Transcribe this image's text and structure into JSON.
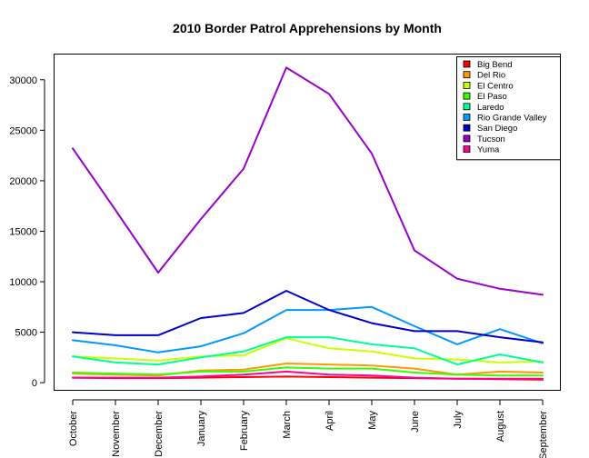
{
  "chart_data": {
    "type": "line",
    "title": "2010 Border Patrol Apprehensions by Month",
    "xlabel": "",
    "ylabel": "",
    "categories": [
      "October",
      "November",
      "December",
      "January",
      "February",
      "March",
      "April",
      "May",
      "June",
      "July",
      "August",
      "September"
    ],
    "y_ticks": [
      0,
      5000,
      10000,
      15000,
      20000,
      25000,
      30000
    ],
    "ylim": [
      -800,
      32500
    ],
    "grid": false,
    "legend_position": "top-right",
    "series": [
      {
        "name": "Big Bend",
        "color": "#ff0000",
        "values": [
          500,
          450,
          450,
          500,
          550,
          600,
          550,
          500,
          450,
          400,
          350,
          300
        ]
      },
      {
        "name": "Del Rio",
        "color": "#ff9900",
        "values": [
          900,
          800,
          700,
          1200,
          1300,
          1900,
          1800,
          1700,
          1400,
          800,
          1100,
          1000
        ]
      },
      {
        "name": "El Centro",
        "color": "#ccff00",
        "values": [
          2600,
          2400,
          2200,
          2600,
          2700,
          4400,
          3400,
          3100,
          2400,
          2300,
          2000,
          2100
        ]
      },
      {
        "name": "El Paso",
        "color": "#33ff00",
        "values": [
          1000,
          900,
          800,
          1100,
          1100,
          1500,
          1400,
          1400,
          1000,
          800,
          700,
          700
        ]
      },
      {
        "name": "Laredo",
        "color": "#00ff99",
        "values": [
          2600,
          2000,
          1800,
          2500,
          3100,
          4500,
          4500,
          3800,
          3400,
          1800,
          2800,
          2000
        ]
      },
      {
        "name": "Rio Grande Valley",
        "color": "#0099ff",
        "values": [
          4200,
          3700,
          3000,
          3600,
          4900,
          7200,
          7200,
          7500,
          5600,
          3800,
          5300,
          3900
        ]
      },
      {
        "name": "San Diego",
        "color": "#0000cc",
        "values": [
          5000,
          4700,
          4700,
          6400,
          6900,
          9100,
          7200,
          5900,
          5100,
          5100,
          4500,
          4000
        ]
      },
      {
        "name": "Tucson",
        "color": "#9900cc",
        "values": [
          23200,
          17100,
          10900,
          16200,
          21200,
          31200,
          28600,
          22700,
          13100,
          10300,
          9300,
          8700
        ]
      },
      {
        "name": "Yuma",
        "color": "#ff0099",
        "values": [
          500,
          500,
          500,
          600,
          800,
          1100,
          800,
          700,
          500,
          400,
          400,
          400
        ]
      }
    ]
  }
}
